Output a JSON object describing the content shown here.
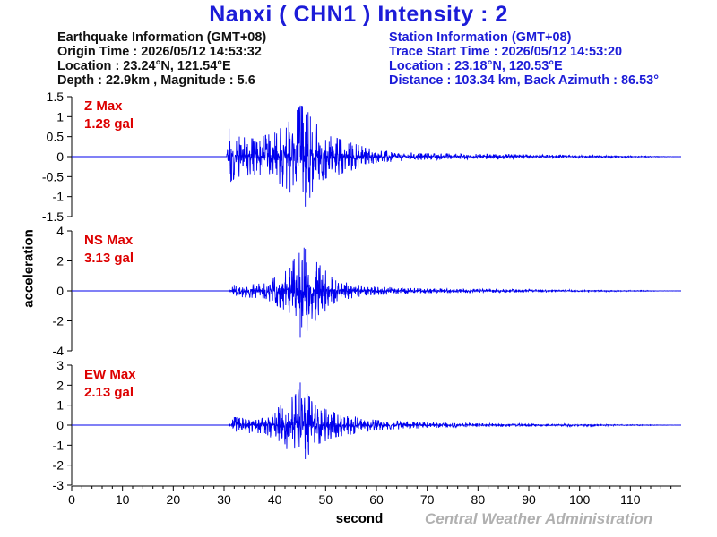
{
  "chart_data": {
    "type": "line",
    "title": "Nanxi ( CHN1 ) Intensity : 2",
    "xlabel": "second",
    "ylabel": "acceleration",
    "xlim": [
      0,
      120
    ],
    "xticks": [
      0,
      10,
      20,
      30,
      40,
      50,
      60,
      70,
      80,
      90,
      100,
      110
    ],
    "grid": false,
    "earthquake_info": {
      "heading": "Earthquake Information  (GMT+08)",
      "origin_time": "Origin Time : 2026/05/12 14:53:32",
      "location": "Location : 23.24°N, 121.54°E",
      "depth_magnitude": "Depth : 22.9km , Magnitude : 5.6"
    },
    "station_info": {
      "heading": "Station Information  (GMT+08)",
      "trace_start": "Trace Start Time : 2026/05/12 14:53:20",
      "location": "Location : 23.18°N, 120.53°E",
      "distance": "Distance : 103.34 km, Back Azimuth : 86.53°"
    },
    "credit": "Central Weather Administration",
    "panels": [
      {
        "label": "Z Max",
        "max_value": "1.28 gal",
        "peak": 1.28,
        "ylim": [
          -1.5,
          1.5
        ],
        "yticks": [
          1.5,
          1,
          0.5,
          0,
          -0.5,
          -1,
          -1.5
        ],
        "series": [
          {
            "x": 0,
            "y": 0
          },
          {
            "x": 30.5,
            "y": 0
          },
          {
            "x": 31,
            "y": 0.7
          },
          {
            "x": 31.5,
            "y": -0.6
          },
          {
            "x": 33,
            "y": 0.5
          },
          {
            "x": 36,
            "y": -0.45
          },
          {
            "x": 40,
            "y": 0.6
          },
          {
            "x": 43,
            "y": -0.9
          },
          {
            "x": 45,
            "y": 1.28
          },
          {
            "x": 46,
            "y": -1.25
          },
          {
            "x": 47,
            "y": 1.0
          },
          {
            "x": 50,
            "y": -0.55
          },
          {
            "x": 55,
            "y": 0.35
          },
          {
            "x": 60,
            "y": -0.15
          },
          {
            "x": 70,
            "y": 0.08
          },
          {
            "x": 90,
            "y": -0.05
          },
          {
            "x": 120,
            "y": 0
          }
        ]
      },
      {
        "label": "NS Max",
        "max_value": "3.13 gal",
        "peak": 3.13,
        "ylim": [
          -4,
          4
        ],
        "yticks": [
          4,
          2,
          0,
          -2,
          -4
        ],
        "series": [
          {
            "x": 0,
            "y": 0
          },
          {
            "x": 31,
            "y": 0
          },
          {
            "x": 32,
            "y": 0.4
          },
          {
            "x": 38,
            "y": -0.5
          },
          {
            "x": 43,
            "y": 1.5
          },
          {
            "x": 45,
            "y": -3.13
          },
          {
            "x": 46,
            "y": 2.8
          },
          {
            "x": 48,
            "y": -2.0
          },
          {
            "x": 52,
            "y": 0.7
          },
          {
            "x": 58,
            "y": -0.3
          },
          {
            "x": 70,
            "y": 0.15
          },
          {
            "x": 120,
            "y": 0
          }
        ]
      },
      {
        "label": "EW Max",
        "max_value": "2.13 gal",
        "peak": 2.13,
        "ylim": [
          -3,
          3
        ],
        "yticks": [
          3,
          2,
          1,
          0,
          -1,
          -2,
          -3
        ],
        "series": [
          {
            "x": 0,
            "y": 0
          },
          {
            "x": 31,
            "y": 0
          },
          {
            "x": 32,
            "y": 0.4
          },
          {
            "x": 38,
            "y": -0.4
          },
          {
            "x": 44,
            "y": 1.5
          },
          {
            "x": 45,
            "y": 2.13
          },
          {
            "x": 46,
            "y": -1.7
          },
          {
            "x": 48,
            "y": 1.0
          },
          {
            "x": 52,
            "y": -0.6
          },
          {
            "x": 60,
            "y": 0.25
          },
          {
            "x": 75,
            "y": -0.1
          },
          {
            "x": 120,
            "y": 0
          }
        ]
      }
    ]
  },
  "colors": {
    "trace": "#0000ee",
    "max_label": "#dd0000",
    "title": "#1c1cd8",
    "station_text": "#1c1cd8",
    "credit": "#b0b0b0"
  }
}
